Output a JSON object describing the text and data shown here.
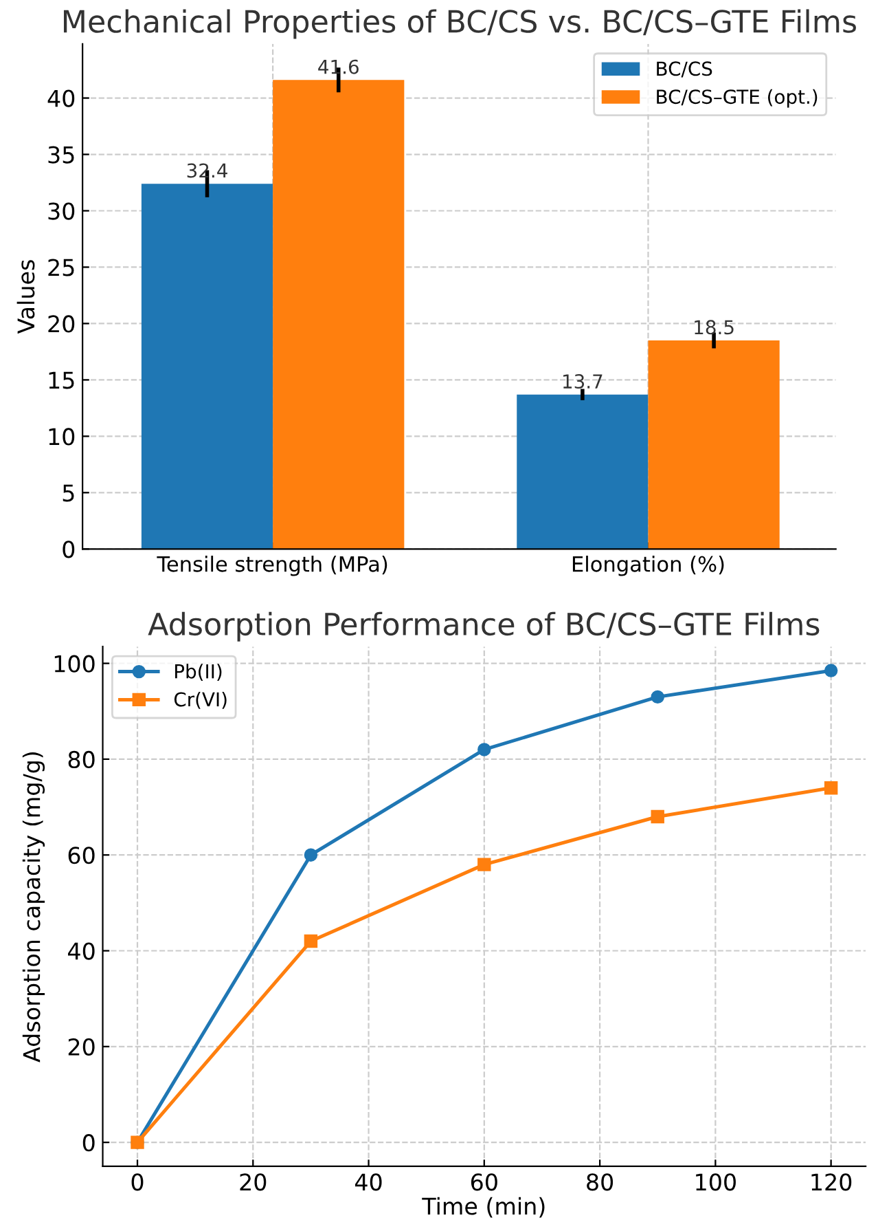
{
  "chart_data": [
    {
      "type": "bar",
      "title": "Mechanical Properties of BC/CS vs. BC/CS–GTE Films",
      "ylabel": "Values",
      "categories": [
        "Tensile strength (MPa)",
        "Elongation (%)"
      ],
      "series": [
        {
          "name": "BC/CS",
          "color": "#1f77b4",
          "values": [
            32.4,
            13.7
          ],
          "errors": [
            1.2,
            0.5
          ]
        },
        {
          "name": "BC/CS–GTE (opt.)",
          "color": "#ff7f0e",
          "values": [
            41.6,
            18.5
          ],
          "errors": [
            1.1,
            0.7
          ]
        }
      ],
      "data_labels": true,
      "ylim": [
        0,
        44.8
      ],
      "yticks": [
        0,
        5,
        10,
        15,
        20,
        25,
        30,
        35,
        40
      ],
      "grid": true,
      "legend": "top right"
    },
    {
      "type": "line",
      "title": "Adsorption Performance of BC/CS–GTE Films",
      "xlabel": "Time (min)",
      "ylabel": "Adsorption capacity (mg/g)",
      "x": [
        0,
        30,
        60,
        90,
        120
      ],
      "series": [
        {
          "name": "Pb(II)",
          "color": "#1f77b4",
          "values": [
            0,
            60,
            82,
            93,
            98.5
          ],
          "marker": "circle"
        },
        {
          "name": "Cr(VI)",
          "color": "#ff7f0e",
          "values": [
            0,
            42,
            58,
            68,
            74
          ],
          "marker": "square"
        }
      ],
      "xlim": [
        -6,
        126
      ],
      "xticks": [
        0,
        20,
        40,
        60,
        80,
        100,
        120
      ],
      "ylim": [
        -5,
        103.5
      ],
      "yticks": [
        0,
        20,
        40,
        60,
        80,
        100
      ],
      "grid": true,
      "legend": "top left",
      "line_style": "solid"
    }
  ]
}
